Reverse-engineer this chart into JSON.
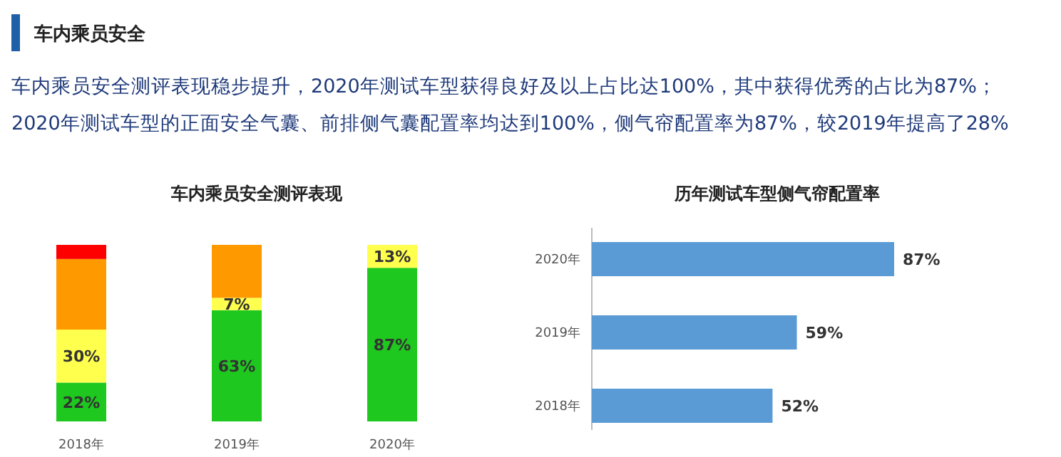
{
  "chart_data": [
    {
      "type": "other",
      "title": "车内乘员安全",
      "annotations": [
        "车内乘员安全测评表现稳步提升，2020年测试车型获得良好及以上占比达100%，其中获得优秀的占比为87%；",
        "2020年测试车型的正面安全气囊、前排侧气囊配置率均达到100%，侧气帘配置率为87%，较2019年提高了28%"
      ]
    },
    {
      "type": "bar",
      "title": "车内乘员安全测评表现",
      "stacked": true,
      "categories": [
        "2018年",
        "2019年",
        "2020年"
      ],
      "series": [
        {
          "color": "#1ec81e",
          "values": [
            22,
            63,
            87
          ],
          "value_labels": [
            "22%",
            "63%",
            "87%"
          ]
        },
        {
          "color": "#ffff4d",
          "values": [
            30,
            7,
            13
          ],
          "value_labels": [
            "30%",
            "7%",
            "13%"
          ]
        },
        {
          "color": "#ff9900",
          "values": [
            40,
            30,
            null
          ],
          "value_labels": [
            null,
            null,
            null
          ]
        },
        {
          "color": "#ff0000",
          "values": [
            8,
            null,
            null
          ],
          "value_labels": [
            null,
            null,
            null
          ]
        }
      ]
    },
    {
      "type": "bar",
      "title": "历年测试车型侧气帘配置率",
      "orientation": "horizontal",
      "categories": [
        "2020年",
        "2019年",
        "2018年"
      ],
      "values": [
        87,
        59,
        52
      ],
      "value_labels": [
        "87%",
        "59%",
        "52%"
      ],
      "color": "#5b9bd5"
    }
  ]
}
